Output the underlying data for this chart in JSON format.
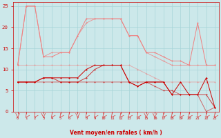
{
  "x": [
    0,
    1,
    2,
    3,
    4,
    5,
    6,
    7,
    8,
    9,
    10,
    11,
    12,
    13,
    14,
    15,
    16,
    17,
    18,
    19,
    20,
    21,
    22,
    23
  ],
  "light1": [
    11,
    25,
    25,
    13,
    13,
    14,
    14,
    18,
    22,
    22,
    22,
    22,
    22,
    18,
    18,
    14,
    14,
    13,
    12,
    12,
    11,
    21,
    11,
    11
  ],
  "light2": [
    11,
    25,
    25,
    13,
    14,
    14,
    14,
    18,
    21,
    22,
    22,
    22,
    22,
    18,
    18,
    14,
    13,
    12,
    11,
    11,
    11,
    11,
    11,
    11
  ],
  "light3": [
    11,
    11,
    11,
    11,
    11,
    11,
    11,
    11,
    11,
    11,
    11,
    11,
    11,
    11,
    10,
    9,
    8,
    7,
    7,
    7,
    7,
    7,
    7,
    7
  ],
  "dark1": [
    7,
    7,
    7,
    8,
    8,
    8,
    8,
    8,
    10,
    11,
    11,
    11,
    11,
    7,
    6,
    7,
    7,
    7,
    4,
    7,
    4,
    4,
    8,
    1
  ],
  "dark2": [
    7,
    7,
    7,
    8,
    8,
    7,
    7,
    7,
    8,
    10,
    11,
    11,
    11,
    7,
    6,
    7,
    7,
    7,
    4,
    4,
    4,
    4,
    4,
    1
  ],
  "dark3": [
    7,
    7,
    7,
    7,
    7,
    7,
    7,
    7,
    7,
    7,
    7,
    7,
    7,
    7,
    7,
    7,
    6,
    5,
    5,
    4,
    4,
    4,
    0,
    1
  ],
  "background_color": "#cce8ea",
  "grid_color": "#a8d4d8",
  "light_color": "#f08080",
  "dark_color": "#cc0000",
  "arrow_color": "#e05050",
  "xlabel": "Vent moyen/en rafales ( km/h )",
  "ylim": [
    0,
    26
  ],
  "xlim_min": -0.5,
  "xlim_max": 23.5,
  "yticks": [
    0,
    5,
    10,
    15,
    20,
    25
  ]
}
